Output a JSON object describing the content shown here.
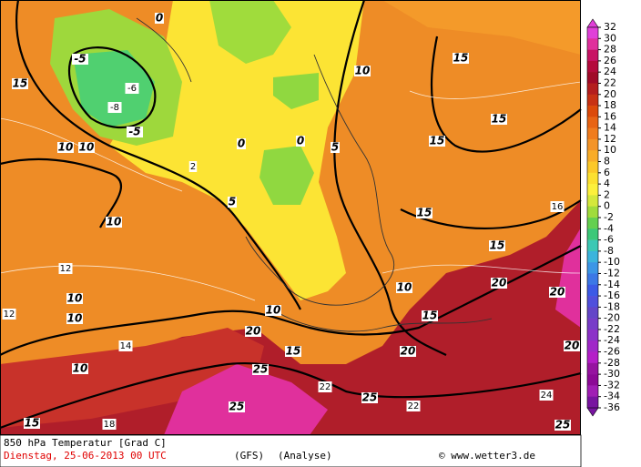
{
  "map": {
    "labels": [
      "15",
      "10",
      "10",
      "10",
      "10",
      "10",
      "10",
      "15",
      "-5",
      "-5",
      "0",
      "0",
      "0",
      "5",
      "5",
      "10",
      "15",
      "15",
      "15",
      "15",
      "15",
      "20",
      "20",
      "20",
      "20",
      "15",
      "25",
      "25",
      "25",
      "20",
      "25",
      "10",
      "15",
      "10",
      "12",
      "12",
      "14",
      "18",
      "22",
      "22",
      "24",
      "16",
      "-8",
      "-6",
      "2"
    ]
  },
  "legend": {
    "labels": [
      32,
      30,
      28,
      26,
      24,
      22,
      20,
      18,
      16,
      14,
      12,
      10,
      8,
      6,
      4,
      2,
      0,
      -2,
      -4,
      -6,
      -8,
      -10,
      -12,
      -14,
      -16,
      -18,
      -20,
      -22,
      -24,
      -26,
      -28,
      -30,
      -32,
      -34,
      -36
    ],
    "colors": [
      "#e040d8",
      "#e0309c",
      "#c81464",
      "#b40a3c",
      "#a00a28",
      "#b41e1e",
      "#c83214",
      "#dc4a0a",
      "#e86414",
      "#f07c1e",
      "#f49428",
      "#f8ac28",
      "#fcc828",
      "#fce030",
      "#fcf03c",
      "#d4e83c",
      "#a0dc3c",
      "#64d050",
      "#3cc878",
      "#3cc8b4",
      "#3cb4dc",
      "#3c96e6",
      "#3c78e6",
      "#3c5ae6",
      "#5050dc",
      "#6446c8",
      "#783cc8",
      "#8c32c8",
      "#a028c8",
      "#b41ec8",
      "#9614a0",
      "#8c0a96",
      "#a01eb4",
      "#7814a0"
    ]
  },
  "footer": {
    "title": "850 hPa Temperatur [Grad C]",
    "date": "Dienstag, 25-06-2013  00 UTC",
    "model": "(GFS)",
    "run": "(Analyse)",
    "credit": "© www.wetter3.de"
  }
}
